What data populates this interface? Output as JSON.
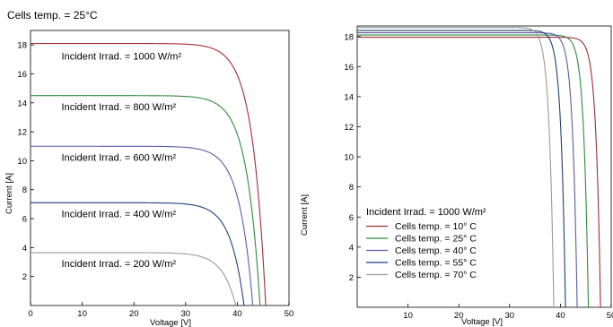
{
  "chart_data": [
    {
      "type": "line",
      "header": "Cells temp. = 25°C",
      "xlabel": "Voltage [V]",
      "ylabel": "Current [A]",
      "xlim": [
        0,
        50
      ],
      "ylim": [
        0,
        19
      ],
      "xticks": [
        0,
        10,
        20,
        30,
        40,
        50
      ],
      "yticks": [
        2,
        4,
        6,
        8,
        10,
        12,
        14,
        16,
        18
      ],
      "series": [
        {
          "name": "Incident Irrad. = 1000 W/m²",
          "color": "#a52a35",
          "isc": 18.1,
          "voc": 45.5,
          "irrad": 1000,
          "label_at": [
            6,
            17.0
          ]
        },
        {
          "name": "Incident Irrad. = 800 W/m²",
          "color": "#2e8b3c",
          "isc": 14.5,
          "voc": 44.4,
          "irrad": 800,
          "label_at": [
            6,
            13.5
          ]
        },
        {
          "name": "Incident Irrad. = 600 W/m²",
          "color": "#5b5ba8",
          "isc": 11.0,
          "voc": 43.0,
          "irrad": 600,
          "label_at": [
            6,
            10.0
          ]
        },
        {
          "name": "Incident Irrad. = 400 W/m²",
          "color": "#1f3f7a",
          "isc": 7.1,
          "voc": 41.3,
          "irrad": 400,
          "label_at": [
            6,
            6.1
          ]
        },
        {
          "name": "Incident Irrad. = 200 W/m²",
          "color": "#9a9a9a",
          "isc": 3.65,
          "voc": 39.7,
          "irrad": 200,
          "label_at": [
            6,
            2.65
          ]
        }
      ]
    },
    {
      "type": "line",
      "xlabel": "Voltage [V]",
      "ylabel": "Current [A]",
      "xlim": [
        0,
        50
      ],
      "ylim": [
        0,
        18.7
      ],
      "xticks": [
        10,
        20,
        30,
        40,
        50
      ],
      "yticks": [
        2,
        4,
        6,
        8,
        10,
        12,
        14,
        16,
        18
      ],
      "legend_title": "Incident Irrad. = 1000 W/m²",
      "legend_loc": "lower-left",
      "series": [
        {
          "name": "Cells temp. = 10° C",
          "color": "#a52a35",
          "isc": 17.95,
          "voc": 47.9,
          "temp": 10
        },
        {
          "name": "Cells temp. = 25° C",
          "color": "#2e8b3c",
          "isc": 18.1,
          "voc": 45.5,
          "temp": 25
        },
        {
          "name": "Cells temp. = 40° C",
          "color": "#5b5ba8",
          "isc": 18.25,
          "voc": 43.3,
          "temp": 40
        },
        {
          "name": "Cells temp. = 55° C",
          "color": "#1f3f7a",
          "isc": 18.4,
          "voc": 41.0,
          "temp": 55
        },
        {
          "name": "Cells temp. = 70° C",
          "color": "#9a9a9a",
          "isc": 18.6,
          "voc": 38.7,
          "temp": 70
        }
      ]
    }
  ]
}
